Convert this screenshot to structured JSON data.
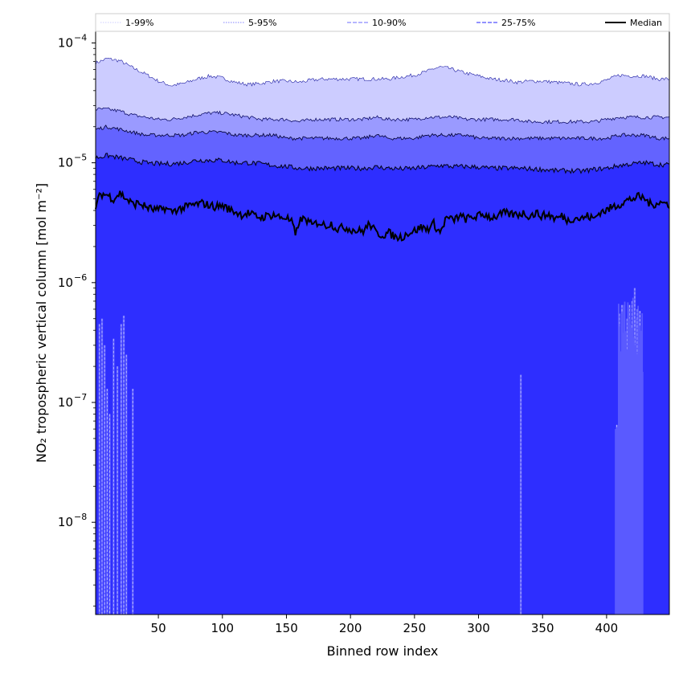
{
  "chart_data": {
    "type": "area",
    "xlabel": "Binned row index",
    "ylabel": "NO₂ tropospheric vertical column [mol m⁻²]",
    "yscale": "log",
    "xlim": [
      1,
      449
    ],
    "ylim": [
      1.7e-09,
      0.000125
    ],
    "xticks": [
      50,
      100,
      150,
      200,
      250,
      300,
      350,
      400
    ],
    "yticks": [
      {
        "value": 1e-08,
        "base": "10",
        "exp": "−8"
      },
      {
        "value": 1e-07,
        "base": "10",
        "exp": "−7"
      },
      {
        "value": 1e-06,
        "base": "10",
        "exp": "−6"
      },
      {
        "value": 1e-05,
        "base": "10",
        "exp": "−5"
      },
      {
        "value": 0.0001,
        "base": "10",
        "exp": "−4"
      }
    ],
    "legend": {
      "placement": "top, above plot",
      "entries": [
        {
          "label": "1-99%",
          "style": "dotted",
          "color": "#d8d8ff"
        },
        {
          "label": "5-95%",
          "style": "dotted",
          "color": "#9a9aff"
        },
        {
          "label": "10-90%",
          "style": "dashed",
          "color": "#8a8aff"
        },
        {
          "label": "25-75%",
          "style": "dashed",
          "color": "#5050ff"
        },
        {
          "label": "Median",
          "style": "solid",
          "color": "#000000"
        }
      ]
    },
    "bands": [
      {
        "name": "1-99%",
        "color": "#ccccff"
      },
      {
        "name": "5-95%",
        "color": "#9a9aff"
      },
      {
        "name": "10-90%",
        "color": "#6363ff"
      },
      {
        "name": "25-75%",
        "color": "#2e2eff"
      }
    ],
    "series": [
      {
        "name": "p99",
        "x": [
          1,
          10,
          20,
          30,
          40,
          50,
          60,
          70,
          80,
          90,
          100,
          110,
          120,
          130,
          140,
          150,
          160,
          170,
          180,
          190,
          200,
          210,
          220,
          230,
          240,
          250,
          260,
          265,
          270,
          275,
          280,
          290,
          300,
          310,
          320,
          330,
          340,
          350,
          360,
          370,
          380,
          390,
          400,
          410,
          420,
          430,
          440,
          449
        ],
        "values": [
          6.8e-05,
          7.4e-05,
          7.1e-05,
          6.2e-05,
          5.5e-05,
          4.8e-05,
          4.4e-05,
          4.6e-05,
          5e-05,
          5.3e-05,
          5.1e-05,
          4.7e-05,
          4.5e-05,
          4.6e-05,
          4.8e-05,
          4.8e-05,
          4.7e-05,
          4.9e-05,
          5e-05,
          5e-05,
          5e-05,
          5e-05,
          5e-05,
          5e-05,
          5.2e-05,
          5.4e-05,
          5.8e-05,
          6.1e-05,
          6.3e-05,
          6.2e-05,
          6e-05,
          5.6e-05,
          5.3e-05,
          5e-05,
          4.9e-05,
          4.7e-05,
          4.8e-05,
          4.8e-05,
          4.7e-05,
          4.6e-05,
          4.5e-05,
          4.6e-05,
          4.9e-05,
          5.4e-05,
          5.3e-05,
          5.3e-05,
          5e-05,
          5e-05
        ]
      },
      {
        "name": "p95",
        "x": [
          1,
          10,
          20,
          30,
          40,
          50,
          60,
          70,
          80,
          90,
          100,
          110,
          120,
          130,
          140,
          150,
          160,
          170,
          180,
          190,
          200,
          210,
          220,
          230,
          240,
          250,
          260,
          270,
          280,
          290,
          300,
          310,
          320,
          330,
          340,
          350,
          360,
          370,
          380,
          390,
          400,
          410,
          420,
          430,
          440,
          449
        ],
        "values": [
          2.8e-05,
          2.8e-05,
          2.7e-05,
          2.5e-05,
          2.4e-05,
          2.3e-05,
          2.3e-05,
          2.4e-05,
          2.5e-05,
          2.6e-05,
          2.6e-05,
          2.5e-05,
          2.4e-05,
          2.3e-05,
          2.3e-05,
          2.3e-05,
          2.2e-05,
          2.3e-05,
          2.3e-05,
          2.3e-05,
          2.3e-05,
          2.3e-05,
          2.4e-05,
          2.3e-05,
          2.3e-05,
          2.3e-05,
          2.4e-05,
          2.4e-05,
          2.4e-05,
          2.3e-05,
          2.3e-05,
          2.3e-05,
          2.3e-05,
          2.3e-05,
          2.2e-05,
          2.2e-05,
          2.2e-05,
          2.2e-05,
          2.2e-05,
          2.2e-05,
          2.3e-05,
          2.4e-05,
          2.4e-05,
          2.4e-05,
          2.4e-05,
          2.4e-05
        ]
      },
      {
        "name": "p90",
        "x": [
          1,
          10,
          20,
          30,
          40,
          50,
          60,
          70,
          80,
          90,
          100,
          110,
          120,
          130,
          140,
          150,
          160,
          170,
          180,
          190,
          200,
          210,
          220,
          230,
          240,
          250,
          260,
          270,
          280,
          290,
          300,
          310,
          320,
          330,
          340,
          350,
          360,
          370,
          380,
          390,
          400,
          410,
          420,
          430,
          440,
          449
        ],
        "values": [
          1.9e-05,
          2e-05,
          1.9e-05,
          1.8e-05,
          1.7e-05,
          1.7e-05,
          1.7e-05,
          1.7e-05,
          1.8e-05,
          1.8e-05,
          1.8e-05,
          1.7e-05,
          1.7e-05,
          1.7e-05,
          1.7e-05,
          1.6e-05,
          1.6e-05,
          1.6e-05,
          1.6e-05,
          1.6e-05,
          1.6e-05,
          1.6e-05,
          1.7e-05,
          1.6e-05,
          1.6e-05,
          1.6e-05,
          1.7e-05,
          1.7e-05,
          1.7e-05,
          1.7e-05,
          1.6e-05,
          1.6e-05,
          1.6e-05,
          1.6e-05,
          1.6e-05,
          1.6e-05,
          1.6e-05,
          1.6e-05,
          1.6e-05,
          1.6e-05,
          1.6e-05,
          1.7e-05,
          1.7e-05,
          1.7e-05,
          1.6e-05,
          1.6e-05
        ]
      },
      {
        "name": "p75",
        "x": [
          1,
          10,
          20,
          30,
          40,
          50,
          60,
          70,
          80,
          90,
          100,
          110,
          120,
          130,
          140,
          150,
          160,
          170,
          180,
          190,
          200,
          210,
          220,
          230,
          240,
          250,
          260,
          270,
          280,
          290,
          300,
          310,
          320,
          330,
          340,
          350,
          360,
          370,
          380,
          390,
          400,
          410,
          420,
          430,
          440,
          449
        ],
        "values": [
          1.1e-05,
          1.15e-05,
          1.1e-05,
          1.05e-05,
          1e-05,
          9.8e-06,
          9.8e-06,
          1e-05,
          1.05e-05,
          1.05e-05,
          1.05e-05,
          1e-05,
          1e-05,
          9.8e-06,
          9.5e-06,
          9.3e-06,
          9e-06,
          9e-06,
          9e-06,
          9e-06,
          9e-06,
          9e-06,
          9.2e-06,
          9e-06,
          8.9e-06,
          9e-06,
          9.2e-06,
          9.5e-06,
          9.3e-06,
          9.3e-06,
          9.2e-06,
          9e-06,
          9e-06,
          9e-06,
          8.9e-06,
          8.8e-06,
          8.6e-06,
          8.6e-06,
          8.5e-06,
          8.8e-06,
          9e-06,
          9.5e-06,
          9.8e-06,
          1e-05,
          9.7e-06,
          9.6e-06
        ]
      },
      {
        "name": "Median",
        "x": [
          1,
          5,
          10,
          15,
          20,
          25,
          30,
          35,
          40,
          45,
          50,
          55,
          60,
          65,
          70,
          75,
          80,
          85,
          90,
          95,
          100,
          105,
          110,
          115,
          120,
          125,
          130,
          135,
          140,
          145,
          150,
          155,
          157,
          160,
          165,
          170,
          175,
          180,
          185,
          190,
          195,
          200,
          205,
          210,
          215,
          220,
          225,
          230,
          235,
          240,
          245,
          250,
          255,
          260,
          265,
          270,
          275,
          280,
          285,
          290,
          295,
          300,
          305,
          310,
          315,
          320,
          325,
          330,
          335,
          340,
          345,
          350,
          355,
          360,
          365,
          370,
          375,
          380,
          385,
          390,
          395,
          400,
          405,
          410,
          415,
          420,
          425,
          430,
          435,
          440,
          445,
          449
        ],
        "values": [
          4.3e-06,
          5.5e-06,
          5.4e-06,
          5e-06,
          5.6e-06,
          5e-06,
          4.5e-06,
          4.6e-06,
          4.3e-06,
          4.1e-06,
          4e-06,
          4.2e-06,
          3.9e-06,
          4.1e-06,
          4.2e-06,
          4.4e-06,
          4.5e-06,
          4.6e-06,
          4.4e-06,
          4.3e-06,
          4.4e-06,
          4.1e-06,
          3.9e-06,
          3.7e-06,
          3.8e-06,
          3.6e-06,
          3.5e-06,
          3.6e-06,
          3.7e-06,
          3.5e-06,
          3.5e-06,
          3.1e-06,
          2.4e-06,
          3.3e-06,
          3.4e-06,
          3e-06,
          3.2e-06,
          3e-06,
          3.1e-06,
          2.8e-06,
          2.9e-06,
          2.8e-06,
          2.7e-06,
          2.7e-06,
          3.1e-06,
          2.6e-06,
          2.5e-06,
          2.6e-06,
          2.4e-06,
          2.4e-06,
          2.6e-06,
          2.7e-06,
          2.9e-06,
          2.8e-06,
          3.1e-06,
          2.6e-06,
          3.5e-06,
          3.3e-06,
          3.6e-06,
          3.4e-06,
          3.5e-06,
          3.6e-06,
          3.7e-06,
          3.5e-06,
          3.6e-06,
          3.8e-06,
          3.7e-06,
          3.7e-06,
          3.8e-06,
          3.6e-06,
          3.8e-06,
          3.6e-06,
          3.7e-06,
          3.4e-06,
          3.6e-06,
          3.3e-06,
          3.5e-06,
          3.4e-06,
          3.6e-06,
          3.4e-06,
          3.9e-06,
          4e-06,
          4.3e-06,
          4.5e-06,
          4.8e-06,
          5e-06,
          5.2e-06,
          5e-06,
          4.4e-06,
          4.7e-06,
          4.6e-06,
          4.5e-06
        ]
      },
      {
        "name": "p25",
        "x": [
          1,
          449
        ],
        "values": [
          1.7e-09,
          1.7e-09
        ]
      },
      {
        "name": "p1 spikes",
        "x": [
          4,
          6,
          8,
          10,
          12,
          15,
          18,
          21,
          23,
          25,
          30,
          333,
          408,
          410,
          412,
          414,
          416,
          418,
          420,
          422,
          424,
          426,
          428
        ],
        "values": [
          4.5e-07,
          5e-07,
          3e-07,
          1.3e-07,
          8e-08,
          3.4e-07,
          2e-07,
          4.5e-07,
          5.3e-07,
          2.5e-07,
          1.3e-07,
          1.7e-07,
          6.5e-08,
          5.5e-07,
          6.5e-07,
          4e-07,
          5e-07,
          6.5e-07,
          7e-07,
          9e-07,
          6e-07,
          5.8e-07,
          1.8e-07
        ]
      }
    ]
  }
}
